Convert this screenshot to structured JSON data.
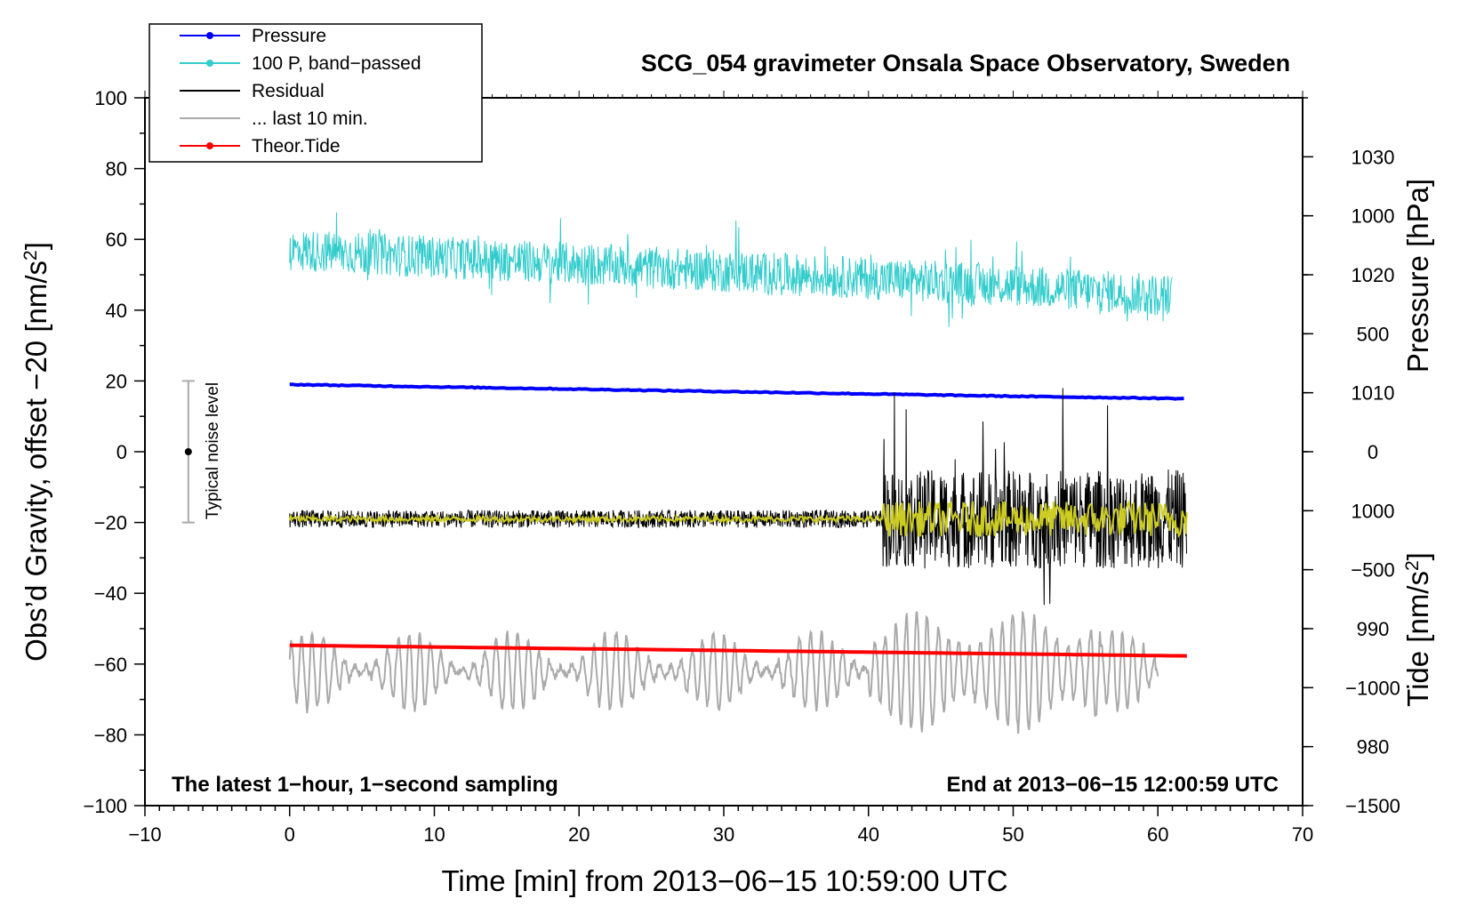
{
  "chart_data": {
    "type": "line",
    "title": "SCG_054 gravimeter Onsala Space Observatory, Sweden",
    "xlabel": "Time [min] from 2013−06−15 10:59:00 UTC",
    "ylabel_left": "Obs’d Gravity, offset −20 [nm/s",
    "ylabel_right_top": "Pressure [hPa]",
    "ylabel_right_bottom": "Tide [nm/s",
    "unit_superscript": "2",
    "unit_close": "]",
    "xlim": [
      -10,
      70
    ],
    "ylim_left": [
      -100,
      100
    ],
    "ylim_pressure": [
      975,
      1035
    ],
    "ylim_tide": [
      -1500,
      1500
    ],
    "x_ticks": [
      {
        "value": -10,
        "label": "−10"
      },
      {
        "value": 0,
        "label": "0"
      },
      {
        "value": 10,
        "label": "10"
      },
      {
        "value": 20,
        "label": "20"
      },
      {
        "value": 30,
        "label": "30"
      },
      {
        "value": 40,
        "label": "40"
      },
      {
        "value": 50,
        "label": "50"
      },
      {
        "value": 60,
        "label": "60"
      },
      {
        "value": 70,
        "label": "70"
      }
    ],
    "y_left_ticks": [
      {
        "value": 100,
        "label": "100"
      },
      {
        "value": 80,
        "label": "80"
      },
      {
        "value": 60,
        "label": "60"
      },
      {
        "value": 40,
        "label": "40"
      },
      {
        "value": 20,
        "label": "20"
      },
      {
        "value": 0,
        "label": "0"
      },
      {
        "value": -20,
        "label": "−20"
      },
      {
        "value": -40,
        "label": "−40"
      },
      {
        "value": -60,
        "label": "−60"
      },
      {
        "value": -80,
        "label": "−80"
      },
      {
        "value": -100,
        "label": "−100"
      }
    ],
    "y_pressure_ticks": [
      {
        "value": 1030,
        "label": "1030"
      },
      {
        "value": 1020,
        "label": "1020"
      },
      {
        "value": 1010,
        "label": "1010"
      },
      {
        "value": 1000,
        "label": "1000"
      },
      {
        "value": 990,
        "label": "990"
      },
      {
        "value": 980,
        "label": "980"
      }
    ],
    "y_tide_ticks": [
      {
        "value": 1000,
        "label": "1000"
      },
      {
        "value": 500,
        "label": "500"
      },
      {
        "value": 0,
        "label": "0"
      },
      {
        "value": -500,
        "label": "−500"
      },
      {
        "value": -1000,
        "label": "−1000"
      },
      {
        "value": -1500,
        "label": "−1500"
      }
    ],
    "legend": [
      {
        "label": "Pressure",
        "color": "#0000ff",
        "marker": true
      },
      {
        "label": "100 P, band−passed",
        "color": "#33cccc",
        "marker": true
      },
      {
        "label": "Residual",
        "color": "#000000",
        "marker": false
      },
      {
        "label": "... last 10 min.",
        "color": "#aaaaaa",
        "marker": false
      },
      {
        "label": "Theor.Tide",
        "color": "#ff0000",
        "marker": true
      }
    ],
    "series": [
      {
        "name": "Pressure",
        "axis": "pressure",
        "color": "#0000ff",
        "x": [
          0,
          10,
          20,
          30,
          40,
          50,
          62
        ],
        "values": [
          1010.7,
          1010.5,
          1010.3,
          1010.1,
          1009.9,
          1009.7,
          1009.5
        ]
      },
      {
        "name": "100 P, band−passed",
        "axis": "left",
        "color": "#33cccc",
        "x": [
          0,
          10,
          20,
          30,
          40,
          50,
          61
        ],
        "values": [
          57,
          55,
          53,
          51,
          49,
          47,
          44
        ],
        "noise": 6
      },
      {
        "name": "Residual",
        "axis": "left",
        "color": "#000000",
        "x": [
          0,
          10,
          20,
          30,
          41,
          50,
          62
        ],
        "values": [
          -19,
          -19,
          -19,
          -19,
          -19,
          -19,
          -19
        ],
        "noise_before": 2.5,
        "noise_after": 14,
        "change_at": 41
      },
      {
        "name": "Residual smoothed",
        "axis": "left",
        "color": "#cccc22",
        "x": [
          0,
          62
        ],
        "values": [
          -19,
          -19
        ],
        "noise_before": 0.8,
        "noise_after": 5,
        "change_at": 41
      },
      {
        "name": "... last 10 min.",
        "axis": "left",
        "color": "#aaaaaa",
        "x": [
          0,
          60
        ],
        "values": [
          -62,
          -62
        ],
        "amplitude": 11
      },
      {
        "name": "Theor.Tide",
        "axis": "left",
        "color": "#ff0000",
        "x": [
          0,
          62
        ],
        "values": [
          -54.7,
          -57.7
        ]
      }
    ],
    "noise_bar": {
      "x": -7,
      "center": 0,
      "low": -20,
      "high": 20,
      "label": "Typical noise level"
    },
    "annotations": {
      "bottom_left": "The latest 1−hour, 1−second sampling",
      "bottom_right": "End at 2013−06−15 12:00:59 UTC"
    }
  }
}
